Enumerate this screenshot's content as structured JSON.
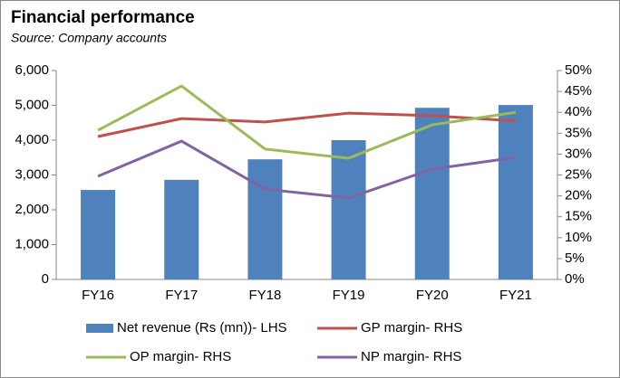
{
  "chart_data": {
    "type": "combo",
    "title": "Financial performance",
    "subtitle": "Source: Company accounts",
    "categories": [
      "FY16",
      "FY17",
      "FY18",
      "FY19",
      "FY20",
      "FY21"
    ],
    "series": [
      {
        "name": "Net revenue (Rs (mn))- LHS",
        "type": "bar",
        "color": "#4f81bd",
        "values": [
          2570,
          2860,
          3450,
          4000,
          4930,
          5010
        ]
      },
      {
        "name": "GP margin- RHS",
        "type": "line",
        "axis": "y2",
        "color": "#c0504d",
        "values": [
          34.2,
          38.5,
          37.7,
          39.8,
          39.2,
          37.9
        ]
      },
      {
        "name": "OP margin- RHS",
        "type": "line",
        "axis": "y2",
        "color": "#9bbb59",
        "values": [
          35.7,
          46.3,
          31.2,
          29.0,
          37.0,
          40.0
        ]
      },
      {
        "name": "NP margin- RHS",
        "type": "line",
        "axis": "y2",
        "color": "#8064a2",
        "values": [
          24.7,
          33.1,
          21.6,
          19.5,
          26.4,
          29.2
        ]
      }
    ],
    "ylim": [
      0,
      6000
    ],
    "yticks": [
      0,
      {
        "value": 1000,
        "label": "1,000"
      },
      {
        "value": 2000,
        "label": "2,000"
      },
      {
        "value": 3000,
        "label": "3,000"
      },
      {
        "value": 4000,
        "label": "4,000"
      },
      {
        "value": 5000,
        "label": "5,000"
      },
      {
        "value": 6000,
        "label": "6,000"
      }
    ],
    "y2lim": [
      0,
      50
    ],
    "y2ticks": [
      {
        "value": 0,
        "label": "0%"
      },
      {
        "value": 5,
        "label": "5%"
      },
      {
        "value": 10,
        "label": "10%"
      },
      {
        "value": 15,
        "label": "15%"
      },
      {
        "value": 20,
        "label": "20%"
      },
      {
        "value": 25,
        "label": "25%"
      },
      {
        "value": 30,
        "label": "30%"
      },
      {
        "value": 35,
        "label": "35%"
      },
      {
        "value": 40,
        "label": "40%"
      },
      {
        "value": 45,
        "label": "45%"
      },
      {
        "value": 50,
        "label": "50%"
      }
    ]
  }
}
